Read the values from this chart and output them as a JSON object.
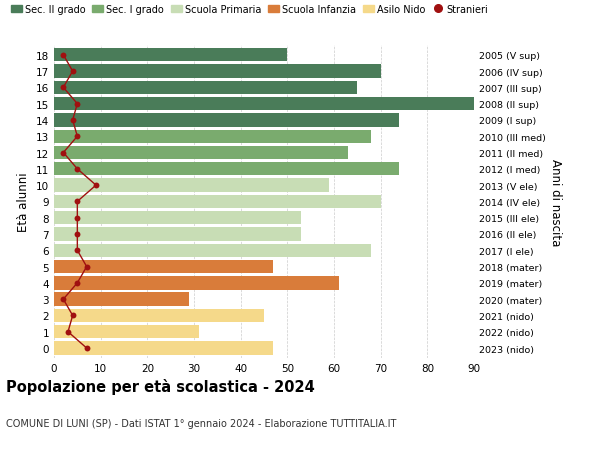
{
  "ages": [
    18,
    17,
    16,
    15,
    14,
    13,
    12,
    11,
    10,
    9,
    8,
    7,
    6,
    5,
    4,
    3,
    2,
    1,
    0
  ],
  "right_labels": [
    "2005 (V sup)",
    "2006 (IV sup)",
    "2007 (III sup)",
    "2008 (II sup)",
    "2009 (I sup)",
    "2010 (III med)",
    "2011 (II med)",
    "2012 (I med)",
    "2013 (V ele)",
    "2014 (IV ele)",
    "2015 (III ele)",
    "2016 (II ele)",
    "2017 (I ele)",
    "2018 (mater)",
    "2019 (mater)",
    "2020 (mater)",
    "2021 (nido)",
    "2022 (nido)",
    "2023 (nido)"
  ],
  "bar_values": [
    50,
    70,
    65,
    91,
    74,
    68,
    63,
    74,
    59,
    70,
    53,
    53,
    68,
    47,
    61,
    29,
    45,
    31,
    47
  ],
  "bar_colors": [
    "#4a7c59",
    "#4a7c59",
    "#4a7c59",
    "#4a7c59",
    "#4a7c59",
    "#7aab6e",
    "#7aab6e",
    "#7aab6e",
    "#c8ddb5",
    "#c8ddb5",
    "#c8ddb5",
    "#c8ddb5",
    "#c8ddb5",
    "#d97c3a",
    "#d97c3a",
    "#d97c3a",
    "#f5d98a",
    "#f5d98a",
    "#f5d98a"
  ],
  "stranieri_values": [
    2,
    4,
    2,
    5,
    4,
    5,
    2,
    5,
    9,
    5,
    5,
    5,
    5,
    7,
    5,
    2,
    4,
    3,
    7
  ],
  "title": "Popolazione per età scolastica - 2024",
  "subtitle": "COMUNE DI LUNI (SP) - Dati ISTAT 1° gennaio 2024 - Elaborazione TUTTITALIA.IT",
  "ylabel": "Età alunni",
  "right_ylabel": "Anni di nascita",
  "xlim": [
    0,
    90
  ],
  "xticks": [
    0,
    10,
    20,
    30,
    40,
    50,
    60,
    70,
    80,
    90
  ],
  "legend_labels": [
    "Sec. II grado",
    "Sec. I grado",
    "Scuola Primaria",
    "Scuola Infanzia",
    "Asilo Nido",
    "Stranieri"
  ],
  "legend_colors": [
    "#4a7c59",
    "#7aab6e",
    "#c8ddb5",
    "#d97c3a",
    "#f5d98a",
    "#a01010"
  ],
  "background_color": "#ffffff",
  "grid_color": "#cccccc",
  "bar_height": 0.82
}
